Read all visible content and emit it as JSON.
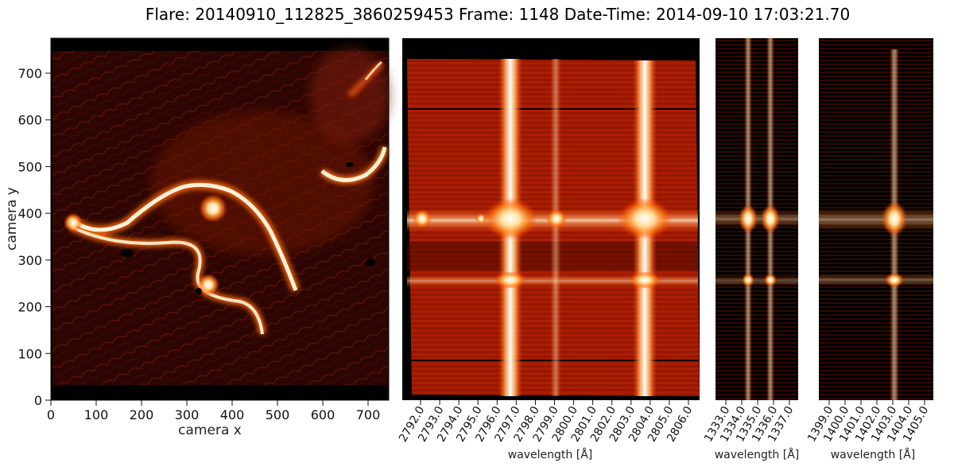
{
  "title": "Flare: 20140910_112825_3860259453 Frame: 1148 Date-Time: 2014-09-10 17:03:21.70",
  "panels": {
    "sji": {
      "xlabel": "camera x",
      "ylabel": "camera y",
      "x_ticks": [
        "0",
        "100",
        "200",
        "300",
        "400",
        "500",
        "600",
        "700"
      ],
      "y_ticks": [
        "0",
        "100",
        "200",
        "300",
        "400",
        "500",
        "600",
        "700"
      ],
      "x_range": [
        0,
        720
      ],
      "y_range": [
        0,
        770
      ]
    },
    "mgii": {
      "xlabel": "wavelength [Å]",
      "x_ticks": [
        "2792.0",
        "2793.0",
        "2794.0",
        "2795.0",
        "2796.0",
        "2797.0",
        "2798.0",
        "2799.0",
        "2800.0",
        "2801.0",
        "2802.0",
        "2803.0",
        "2804.0",
        "2805.0",
        "2806.0"
      ]
    },
    "cii": {
      "xlabel": "wavelength [Å]",
      "x_ticks": [
        "1333.0",
        "1334.0",
        "1335.0",
        "1336.0",
        "1337.0"
      ]
    },
    "siiv": {
      "xlabel": "wavelength [Å]",
      "x_ticks": [
        "1399.0",
        "1400.0",
        "1401.0",
        "1402.0",
        "1403.0",
        "1404.0",
        "1405.0"
      ]
    }
  },
  "colors": {
    "background_dark": "#0a0000",
    "ribbon_hot": "#ffffff",
    "ribbon_mid": "#ff9a40",
    "plasma": "#8a1a05",
    "spectral_base": "#a51a00"
  }
}
